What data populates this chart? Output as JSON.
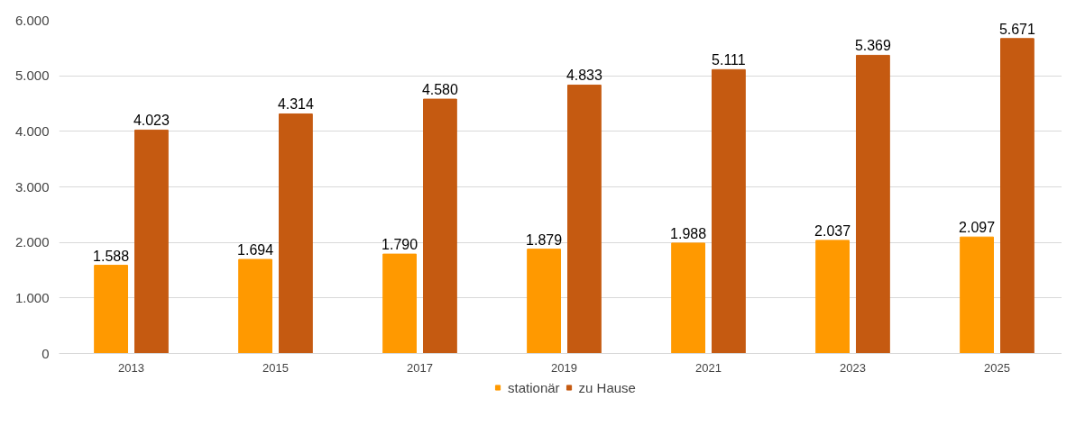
{
  "chart_data": {
    "type": "bar",
    "categories": [
      "2013",
      "2015",
      "2017",
      "2019",
      "2021",
      "2023",
      "2025"
    ],
    "series": [
      {
        "name": "stationär",
        "color": "#ff9900",
        "values": [
          1588,
          1694,
          1790,
          1879,
          1988,
          2037,
          2097
        ],
        "value_labels": [
          "1.588",
          "1.694",
          "1.790",
          "1.879",
          "1.988",
          "2.037",
          "2.097"
        ]
      },
      {
        "name": "zu Hause",
        "color": "#c55a11",
        "values": [
          4023,
          4314,
          4580,
          4833,
          5111,
          5369,
          5671
        ],
        "value_labels": [
          "4.023",
          "4.314",
          "4.580",
          "4.833",
          "5.111",
          "5.369",
          "5.671"
        ]
      }
    ],
    "ylim": [
      0,
      6000
    ],
    "yticks": [
      0,
      {
        "value": 1000,
        "label": "1.000"
      },
      {
        "value": 2000,
        "label": "2.000"
      },
      {
        "value": 3000,
        "label": "3.000"
      },
      {
        "value": 4000,
        "label": "4.000"
      },
      {
        "value": 5000,
        "label": "5.000"
      },
      {
        "value": 6000,
        "label": "6.000"
      }
    ],
    "grid": "y",
    "legend": "bottom"
  }
}
